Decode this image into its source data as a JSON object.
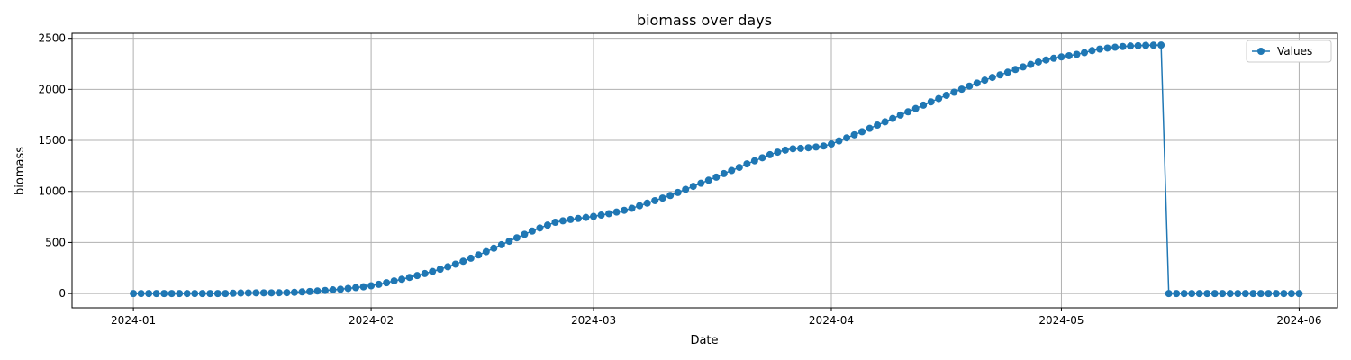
{
  "chart_data": {
    "type": "line",
    "title": "biomass over days",
    "xlabel": "Date",
    "ylabel": "biomass",
    "x_start": "2024-01-01",
    "x_end": "2024-05-29",
    "x_step_days": 1,
    "xlim": [
      "2023-12-24",
      "2024-06-06"
    ],
    "ylim": [
      -140,
      2550
    ],
    "x_ticks": [
      "2024-01",
      "2024-02",
      "2024-03",
      "2024-04",
      "2024-05",
      "2024-06"
    ],
    "y_ticks": [
      0,
      500,
      1000,
      1500,
      2000,
      2500
    ],
    "grid": true,
    "legend_position": "top-right",
    "series": [
      {
        "name": "Values",
        "color": "#1f77b4",
        "marker": "circle",
        "values": [
          0,
          0,
          0,
          0,
          0,
          0,
          0,
          0,
          0,
          0,
          0,
          0,
          0,
          3,
          5,
          6,
          7,
          7,
          7,
          8,
          9,
          12,
          16,
          20,
          25,
          30,
          36,
          42,
          50,
          58,
          66,
          76,
          90,
          106,
          124,
          140,
          158,
          176,
          196,
          216,
          238,
          262,
          288,
          316,
          346,
          378,
          410,
          444,
          478,
          512,
          546,
          580,
          612,
          642,
          670,
          698,
          712,
          725,
          735,
          745,
          755,
          768,
          782,
          798,
          815,
          835,
          860,
          885,
          910,
          935,
          960,
          990,
          1020,
          1050,
          1080,
          1110,
          1140,
          1175,
          1205,
          1235,
          1270,
          1300,
          1330,
          1360,
          1385,
          1405,
          1418,
          1422,
          1428,
          1435,
          1445,
          1465,
          1495,
          1525,
          1555,
          1585,
          1618,
          1650,
          1682,
          1715,
          1748,
          1780,
          1812,
          1845,
          1878,
          1910,
          1942,
          1972,
          2002,
          2032,
          2062,
          2090,
          2117,
          2142,
          2168,
          2195,
          2220,
          2245,
          2268,
          2288,
          2305,
          2318,
          2330,
          2343,
          2360,
          2380,
          2395,
          2405,
          2413,
          2420,
          2425,
          2428,
          2431,
          2433,
          2434,
          0,
          0,
          0,
          0,
          0,
          0,
          0,
          0,
          0,
          0,
          0,
          0,
          0,
          0,
          0,
          0,
          0,
          0
        ]
      }
    ]
  }
}
